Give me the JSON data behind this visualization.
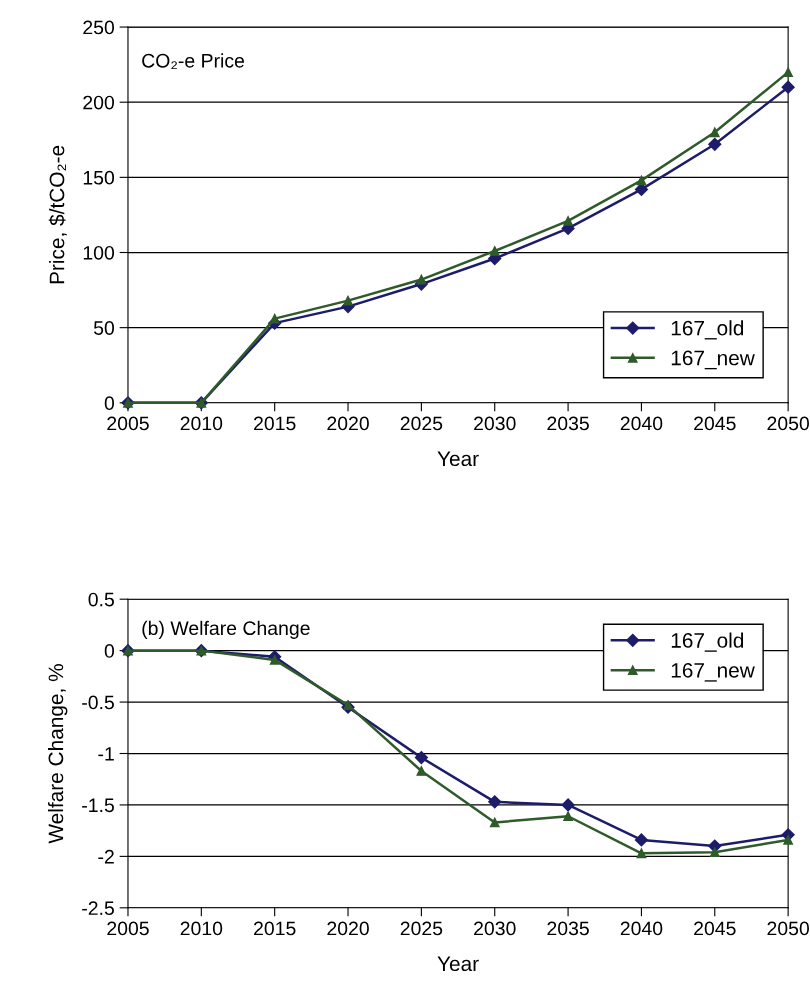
{
  "chart_data": [
    {
      "type": "line",
      "annotations": [
        "CO₂-e Price"
      ],
      "xlabel": "Year",
      "ylabel": "Price, $/tCO₂-e",
      "x": [
        2005,
        2010,
        2015,
        2020,
        2025,
        2030,
        2035,
        2040,
        2045,
        2050
      ],
      "series": [
        {
          "name": "167_old",
          "color": "#1c1c6b",
          "marker": "diamond",
          "values": [
            0,
            0,
            53,
            64,
            79,
            96,
            116,
            142,
            172,
            210
          ]
        },
        {
          "name": "167_new",
          "color": "#2f5a2a",
          "marker": "triangle",
          "values": [
            0,
            0,
            56,
            68,
            82,
            101,
            121,
            148,
            180,
            220
          ]
        }
      ],
      "xlim": [
        2005,
        2050
      ],
      "xticks": [
        2005,
        2010,
        2015,
        2020,
        2025,
        2030,
        2035,
        2040,
        2045,
        2050
      ],
      "ylim": [
        0,
        250
      ],
      "yticks": [
        0,
        50,
        100,
        150,
        200,
        250
      ],
      "grid": "y",
      "legend": "lower right"
    },
    {
      "type": "line",
      "annotations": [
        "(b) Welfare Change"
      ],
      "xlabel": "Year",
      "ylabel": "Welfare Change, %",
      "x": [
        2005,
        2010,
        2015,
        2020,
        2025,
        2030,
        2035,
        2040,
        2045,
        2050
      ],
      "series": [
        {
          "name": "167_old",
          "color": "#1c1c6b",
          "marker": "diamond",
          "values": [
            0,
            0,
            -0.06,
            -0.55,
            -1.04,
            -1.47,
            -1.5,
            -1.84,
            -1.9,
            -1.79
          ]
        },
        {
          "name": "167_new",
          "color": "#2f5a2a",
          "marker": "triangle",
          "values": [
            0,
            0,
            -0.09,
            -0.53,
            -1.17,
            -1.67,
            -1.61,
            -1.97,
            -1.96,
            -1.84
          ]
        }
      ],
      "xlim": [
        2005,
        2050
      ],
      "xticks": [
        2005,
        2010,
        2015,
        2020,
        2025,
        2030,
        2035,
        2040,
        2045,
        2050
      ],
      "ylim": [
        -2.5,
        0.5
      ],
      "yticks": [
        -2.5,
        -2,
        -1.5,
        -1,
        -0.5,
        0,
        0.5
      ],
      "grid": "y",
      "legend": "upper right"
    }
  ]
}
